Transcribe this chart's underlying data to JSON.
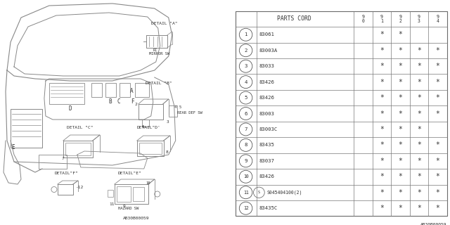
{
  "bg_color": "#ffffff",
  "lc": "#888888",
  "tc": "#333333",
  "catalog_num": "AB30B00059",
  "rows": [
    {
      "num": "1",
      "part": "83061",
      "marks": [
        false,
        true,
        true,
        false,
        false
      ]
    },
    {
      "num": "2",
      "part": "83003A",
      "marks": [
        false,
        true,
        true,
        true,
        true
      ]
    },
    {
      "num": "3",
      "part": "83033",
      "marks": [
        false,
        true,
        true,
        true,
        true
      ]
    },
    {
      "num": "4",
      "part": "83426",
      "marks": [
        false,
        true,
        true,
        true,
        true
      ]
    },
    {
      "num": "5",
      "part": "83426",
      "marks": [
        false,
        true,
        true,
        true,
        true
      ]
    },
    {
      "num": "6",
      "part": "83003",
      "marks": [
        false,
        true,
        true,
        true,
        true
      ]
    },
    {
      "num": "7",
      "part": "83003C",
      "marks": [
        false,
        true,
        true,
        true,
        false
      ]
    },
    {
      "num": "8",
      "part": "83435",
      "marks": [
        false,
        true,
        true,
        true,
        true
      ]
    },
    {
      "num": "9",
      "part": "83037",
      "marks": [
        false,
        true,
        true,
        true,
        true
      ]
    },
    {
      "num": "10",
      "part": "83426",
      "marks": [
        false,
        true,
        true,
        true,
        true
      ]
    },
    {
      "num": "11",
      "part": "S045404100(2)",
      "marks": [
        false,
        true,
        true,
        true,
        true
      ],
      "s_prefix": true
    },
    {
      "num": "12",
      "part": "83435C",
      "marks": [
        false,
        true,
        true,
        true,
        true
      ]
    }
  ]
}
